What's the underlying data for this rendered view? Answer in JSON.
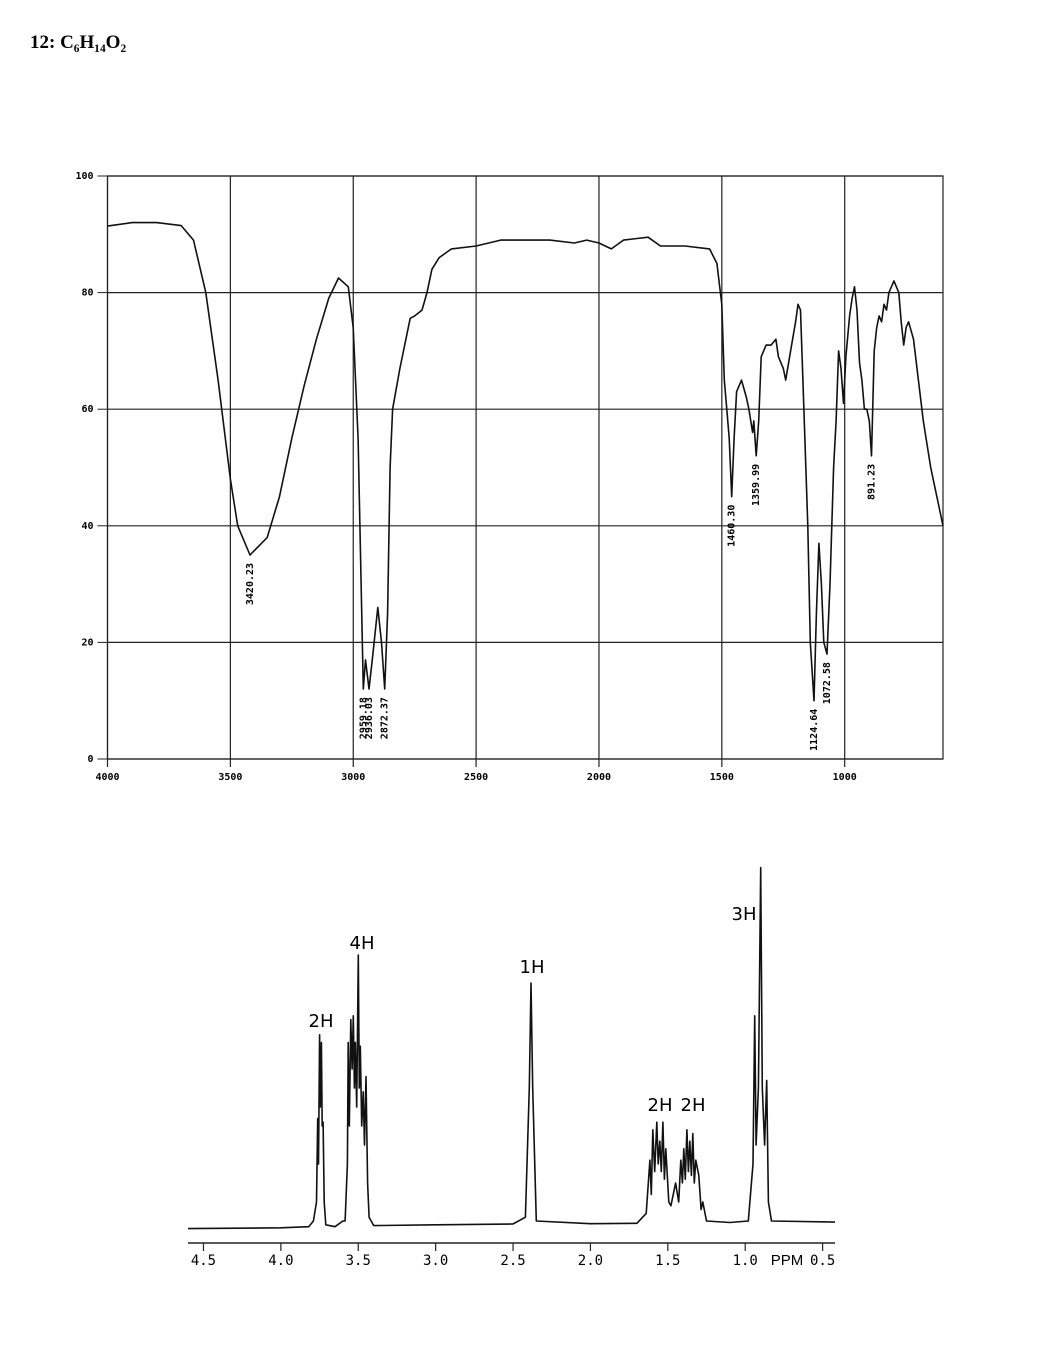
{
  "title": "12: C₆H₁₄O₂",
  "chart_data": [
    {
      "type": "line",
      "color": "#111111",
      "grid": true,
      "xlim": [
        4000,
        600
      ],
      "ylim": [
        0,
        100
      ],
      "xticks": [
        4000,
        3500,
        3000,
        2500,
        2000,
        1500,
        1000
      ],
      "yticks": [
        0,
        20,
        40,
        60,
        80,
        100
      ],
      "x": [
        4000,
        3900,
        3800,
        3700,
        3650,
        3600,
        3550,
        3500,
        3470,
        3420,
        3350,
        3300,
        3250,
        3200,
        3150,
        3100,
        3060,
        3020,
        3000,
        2980,
        2959,
        2950,
        2936,
        2920,
        2900,
        2885,
        2872,
        2860,
        2850,
        2840,
        2810,
        2768,
        2750,
        2720,
        2700,
        2680,
        2650,
        2600,
        2500,
        2400,
        2300,
        2200,
        2100,
        2050,
        2000,
        1950,
        1900,
        1800,
        1750,
        1650,
        1550,
        1520,
        1500,
        1490,
        1480,
        1470,
        1460,
        1450,
        1440,
        1420,
        1400,
        1390,
        1375,
        1370,
        1360,
        1350,
        1340,
        1320,
        1300,
        1280,
        1270,
        1250,
        1240,
        1220,
        1200,
        1190,
        1180,
        1170,
        1150,
        1140,
        1125,
        1115,
        1105,
        1095,
        1085,
        1072,
        1060,
        1045,
        1035,
        1025,
        1015,
        1005,
        995,
        980,
        970,
        960,
        950,
        940,
        930,
        920,
        910,
        900,
        891,
        880,
        870,
        860,
        850,
        840,
        830,
        820,
        800,
        780,
        770,
        760,
        750,
        740,
        720,
        700,
        680,
        650,
        620,
        600
      ],
      "values": [
        91.4,
        92,
        92,
        91.5,
        89,
        80,
        65,
        48,
        40,
        35,
        38,
        45,
        55,
        64,
        72,
        79,
        82.5,
        81,
        74,
        55,
        12,
        17,
        12,
        18,
        26,
        20,
        12,
        25,
        50,
        60,
        67,
        75.6,
        76,
        77,
        80,
        84,
        86,
        87.5,
        88,
        89,
        89,
        89,
        88.5,
        89,
        88.5,
        87.5,
        89,
        89.5,
        88,
        88,
        87.5,
        85,
        78,
        65,
        60,
        55,
        45,
        55,
        63,
        65,
        62,
        60,
        56,
        58,
        52,
        58,
        69,
        71,
        71,
        72,
        69,
        67,
        65,
        70,
        75,
        78,
        77,
        65,
        40,
        20,
        10,
        25,
        37,
        30,
        20,
        18,
        30,
        50,
        58,
        70,
        67,
        61,
        69,
        76,
        79,
        81,
        77,
        68,
        65,
        60,
        60,
        58,
        52,
        70,
        74,
        76,
        75,
        78,
        77,
        80,
        82,
        80,
        75,
        71,
        74,
        75,
        72,
        65,
        58,
        50,
        44,
        40
      ],
      "annotations": [
        {
          "value": 3420.23,
          "label": "3420.23"
        },
        {
          "value": 2959.18,
          "label": "2959.18"
        },
        {
          "value": 2936.03,
          "label": "2936.03"
        },
        {
          "value": 2872.37,
          "label": "2872.37"
        },
        {
          "value": 1460.3,
          "label": "1460.30"
        },
        {
          "value": 1359.99,
          "label": "1359.99"
        },
        {
          "value": 1124.64,
          "label": "1124.64"
        },
        {
          "value": 1072.58,
          "label": "1072.58"
        },
        {
          "value": 891.23,
          "label": "891.23"
        }
      ]
    },
    {
      "type": "line",
      "color": "#111111",
      "grid": false,
      "xlim": [
        4.6,
        0.42
      ],
      "ylim": [
        0,
        100
      ],
      "xlabel": "PPM",
      "xticks": [
        4.5,
        {
          "value": 4,
          "label": "4.0"
        },
        3.5,
        {
          "value": 3,
          "label": "3.0"
        },
        2.5,
        {
          "value": 2,
          "label": "2.0"
        },
        1.5,
        {
          "value": 1,
          "label": "1.0"
        },
        0.5
      ],
      "x": [
        4.6,
        4.0,
        3.82,
        3.79,
        3.77,
        3.762,
        3.757,
        3.75,
        3.745,
        3.738,
        3.733,
        3.727,
        3.72,
        3.71,
        3.65,
        3.6,
        3.585,
        3.57,
        3.565,
        3.558,
        3.548,
        3.54,
        3.532,
        3.525,
        3.519,
        3.51,
        3.5,
        3.493,
        3.487,
        3.478,
        3.468,
        3.46,
        3.45,
        3.44,
        3.43,
        3.4,
        3.0,
        2.5,
        2.42,
        2.395,
        2.384,
        2.373,
        2.35,
        2.0,
        1.7,
        1.64,
        1.616,
        1.607,
        1.597,
        1.585,
        1.571,
        1.562,
        1.552,
        1.542,
        1.532,
        1.522,
        1.513,
        1.494,
        1.48,
        1.45,
        1.43,
        1.416,
        1.406,
        1.397,
        1.387,
        1.377,
        1.367,
        1.358,
        1.348,
        1.339,
        1.329,
        1.319,
        1.3,
        1.285,
        1.274,
        1.25,
        1.1,
        0.98,
        0.95,
        0.939,
        0.93,
        0.915,
        0.9,
        0.89,
        0.875,
        0.861,
        0.85,
        0.83,
        0.42
      ],
      "values": [
        3.0,
        3.2,
        3.5,
        5,
        10,
        32,
        20,
        54,
        35,
        52,
        30,
        31,
        10,
        4,
        3.5,
        5,
        5,
        20,
        52,
        30,
        58,
        45,
        59,
        40,
        52,
        35,
        75,
        40,
        51,
        30,
        39,
        25,
        43,
        15,
        6,
        3.8,
        4.0,
        4.2,
        6,
        40,
        67.6,
        40,
        5,
        4.3,
        4.4,
        7,
        21,
        12,
        29,
        18,
        31,
        20,
        26,
        18,
        31,
        16,
        24,
        10,
        9,
        15,
        10,
        21,
        15,
        24,
        16,
        29,
        18,
        26,
        17,
        28,
        15,
        21,
        17,
        8,
        10,
        5,
        4.6,
        5,
        20,
        59,
        25,
        40,
        98,
        40,
        25,
        42,
        10,
        5,
        4.7
      ],
      "annotations": [
        "2H",
        "4H",
        "1H",
        "2H",
        "2H",
        "3H"
      ]
    }
  ]
}
